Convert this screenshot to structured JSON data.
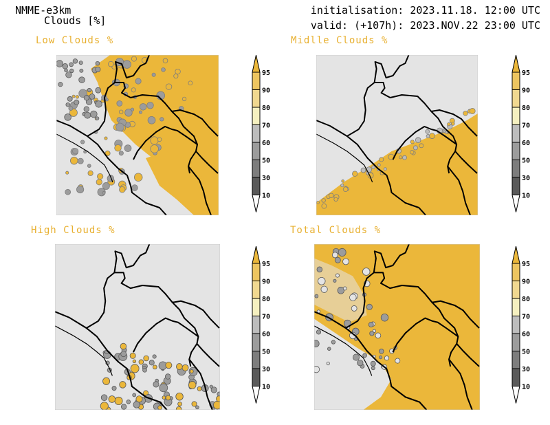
{
  "header": {
    "model": "NMME-e3km",
    "variable": "Clouds [%]",
    "init": "initialisation: 2023.11.18. 12:00 UTC",
    "valid": "valid: (+107h): 2023.NOV.22 23:00 UTC"
  },
  "panels": [
    {
      "title": "Low Clouds %",
      "fill": "mixed-sw-clear-ne-cloudy"
    },
    {
      "title": "Midlle Clouds %",
      "fill": "cloudy-southeast"
    },
    {
      "title": "High Clouds %",
      "fill": "mostly-clear"
    },
    {
      "title": "Total Clouds %",
      "fill": "mostly-cloudy"
    }
  ],
  "colorbar": {
    "levels": [
      "10",
      "30",
      "50",
      "60",
      "70",
      "80",
      "90",
      "95"
    ],
    "colors": {
      "lt10": "#ffffff",
      "c10_30": "#5a5a5a",
      "c30_50": "#7d7d7d",
      "c50_60": "#9c9c9c",
      "c60_70": "#bdbdbd",
      "c70_80": "#f5f0c0",
      "c80_90": "#f0d890",
      "c90_95": "#edc560",
      "gt95": "#ebb73a"
    }
  },
  "colors": {
    "clear": "#e4e4e4",
    "cloud": "#ebb73a",
    "title": "#e8b030",
    "border": "#000000"
  }
}
